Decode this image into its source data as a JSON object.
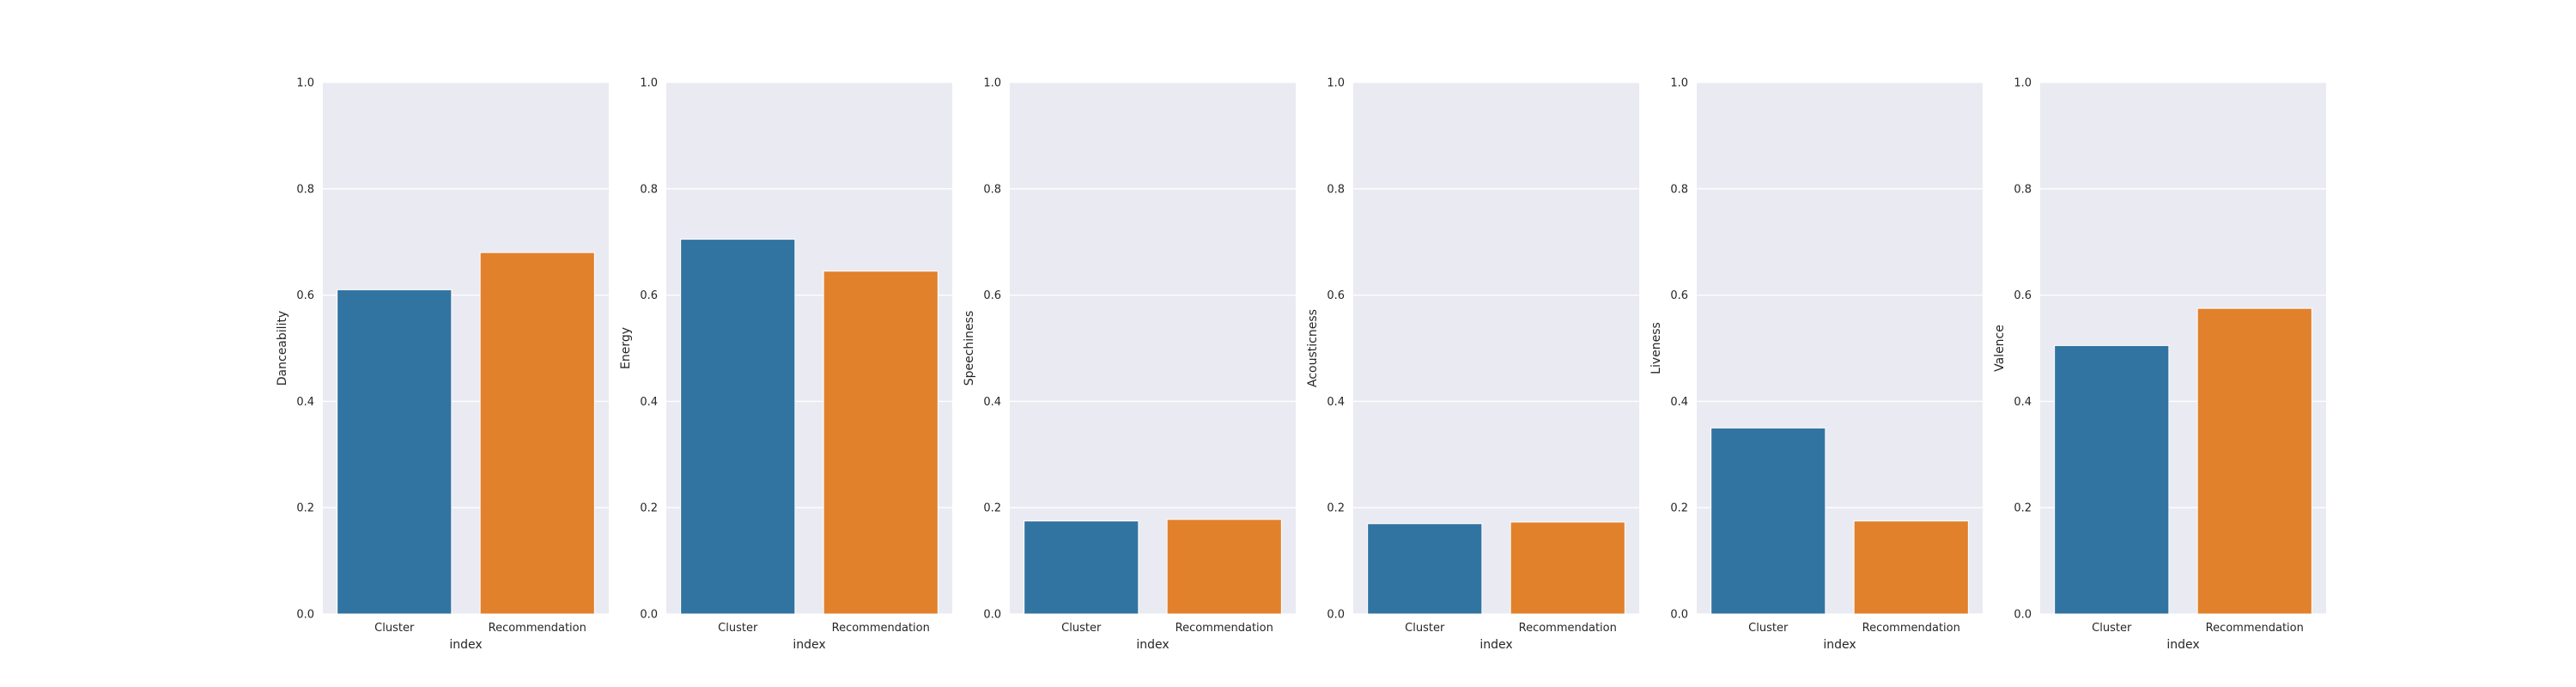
{
  "chart_data": [
    {
      "type": "bar",
      "categories": [
        "Cluster",
        "Recommendation"
      ],
      "values": [
        0.61,
        0.68
      ],
      "xlabel": "index",
      "ylabel": "Danceability",
      "ylim": [
        0,
        1.0
      ],
      "yticks": [
        "0.0",
        "0.2",
        "0.4",
        "0.6",
        "0.8",
        "1.0"
      ],
      "grid": true
    },
    {
      "type": "bar",
      "categories": [
        "Cluster",
        "Recommendation"
      ],
      "values": [
        0.705,
        0.645
      ],
      "xlabel": "index",
      "ylabel": "Energy",
      "ylim": [
        0,
        1.0
      ],
      "yticks": [
        "0.0",
        "0.2",
        "0.4",
        "0.6",
        "0.8",
        "1.0"
      ],
      "grid": true
    },
    {
      "type": "bar",
      "categories": [
        "Cluster",
        "Recommendation"
      ],
      "values": [
        0.175,
        0.178
      ],
      "xlabel": "index",
      "ylabel": "Speechiness",
      "ylim": [
        0,
        1.0
      ],
      "yticks": [
        "0.0",
        "0.2",
        "0.4",
        "0.6",
        "0.8",
        "1.0"
      ],
      "grid": true
    },
    {
      "type": "bar",
      "categories": [
        "Cluster",
        "Recommendation"
      ],
      "values": [
        0.17,
        0.173
      ],
      "xlabel": "index",
      "ylabel": "Acousticness",
      "ylim": [
        0,
        1.0
      ],
      "yticks": [
        "0.0",
        "0.2",
        "0.4",
        "0.6",
        "0.8",
        "1.0"
      ],
      "grid": true
    },
    {
      "type": "bar",
      "categories": [
        "Cluster",
        "Recommendation"
      ],
      "values": [
        0.35,
        0.175
      ],
      "xlabel": "index",
      "ylabel": "Liveness",
      "ylim": [
        0,
        1.0
      ],
      "yticks": [
        "0.0",
        "0.2",
        "0.4",
        "0.6",
        "0.8",
        "1.0"
      ],
      "grid": true
    },
    {
      "type": "bar",
      "categories": [
        "Cluster",
        "Recommendation"
      ],
      "values": [
        0.505,
        0.575
      ],
      "xlabel": "index",
      "ylabel": "Valence",
      "ylim": [
        0,
        1.0
      ],
      "yticks": [
        "0.0",
        "0.2",
        "0.4",
        "0.6",
        "0.8",
        "1.0"
      ],
      "grid": true
    }
  ],
  "colors": {
    "bar_colors": [
      "#3274a1",
      "#e1812c"
    ],
    "axes_background": "#eaeaf2",
    "grid": "#ffffff"
  }
}
